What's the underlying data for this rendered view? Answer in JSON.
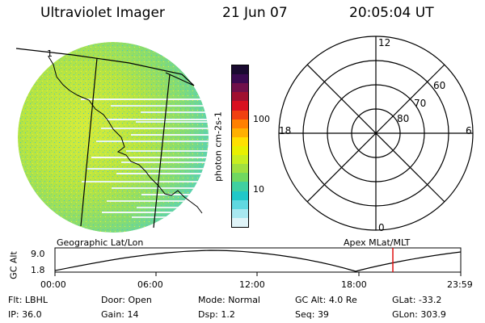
{
  "header": {
    "instrument": "Ultraviolet Imager",
    "date": "21 Jun 07",
    "time": "20:05:04 UT"
  },
  "colorbar": {
    "label": "photon cm-2s-1",
    "ticks": [
      "100",
      "10"
    ],
    "colors": [
      "#1a0a30",
      "#3a0a50",
      "#70104a",
      "#a01030",
      "#d81020",
      "#f04010",
      "#ff8000",
      "#ffb000",
      "#ffe000",
      "#e8f000",
      "#c8ee20",
      "#a0e040",
      "#70d860",
      "#40d0a0",
      "#20c8c8",
      "#60d8e0",
      "#a8e8f0",
      "#e0f4f8"
    ]
  },
  "polar": {
    "lat_labels": [
      "60",
      "70",
      "80"
    ],
    "mlt_labels": {
      "top": "12",
      "bottom": "0",
      "left": "18",
      "right": "6"
    }
  },
  "labels": {
    "left_projection": "Geographic Lat/Lon",
    "right_projection": "Apex MLat/MLT"
  },
  "altitude_plot": {
    "ylabel": "GC Alt",
    "yticks": [
      "9.0",
      "1.8"
    ],
    "xticks": [
      "00:00",
      "06:00",
      "12:00",
      "18:00",
      "23:59"
    ]
  },
  "info": {
    "row1": [
      {
        "key": "Flt:",
        "val": "LBHL"
      },
      {
        "key": "Door:",
        "val": "Open"
      },
      {
        "key": "Mode:",
        "val": "Normal"
      },
      {
        "key": "GC Alt:",
        "val": "4.0 Re"
      },
      {
        "key": "GLat:",
        "val": "-33.2"
      }
    ],
    "row2": [
      {
        "key": "IP:",
        "val": "36.0"
      },
      {
        "key": "Gain:",
        "val": "14"
      },
      {
        "key": "Dsp:",
        "val": "1.2"
      },
      {
        "key": "Seq:",
        "val": "39"
      },
      {
        "key": "GLon:",
        "val": "303.9"
      }
    ]
  }
}
